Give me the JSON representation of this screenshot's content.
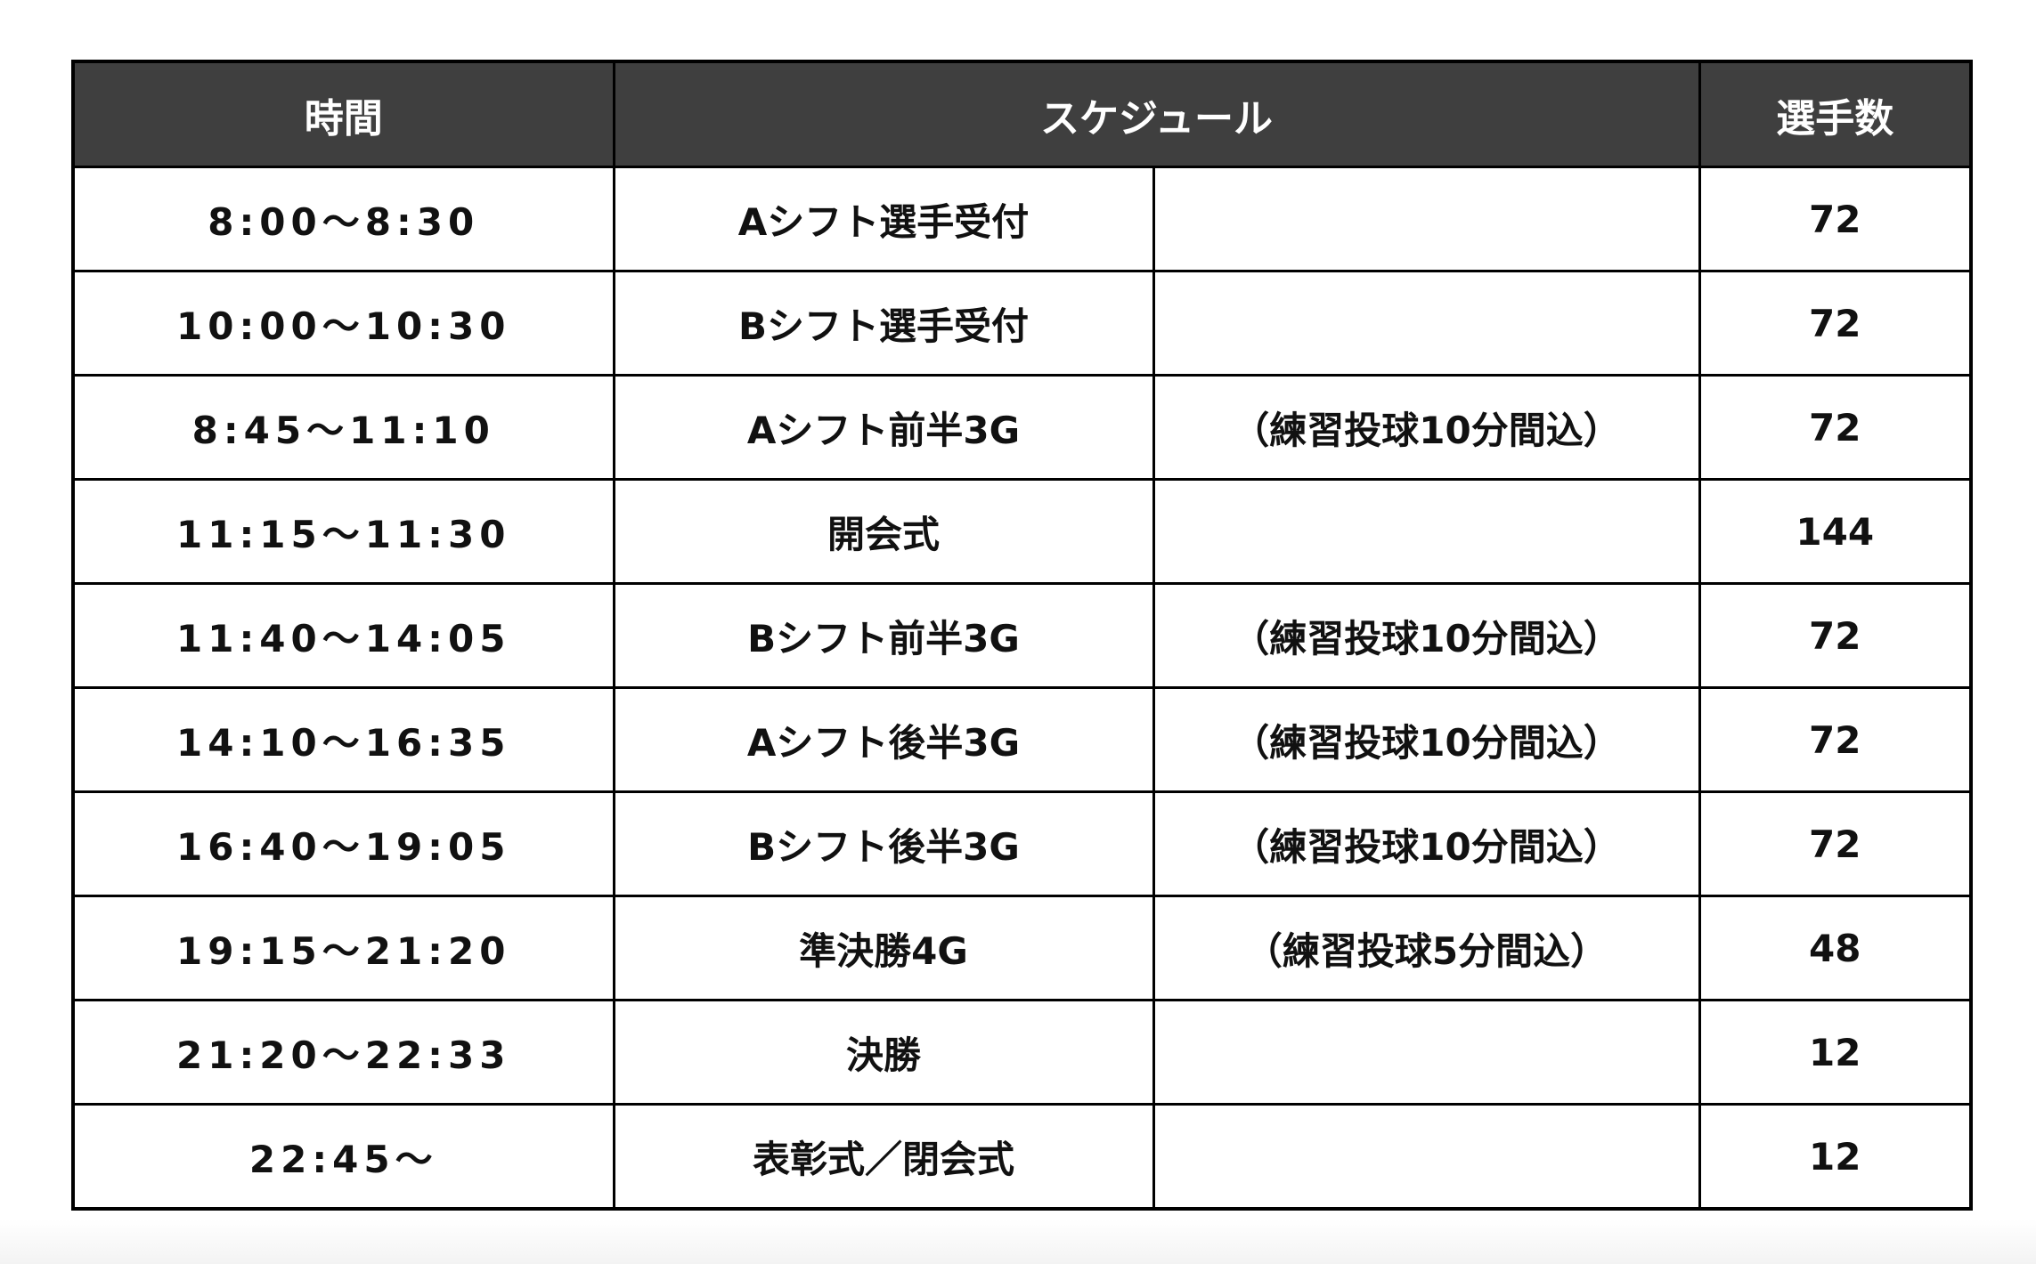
{
  "headers": {
    "time": "時間",
    "schedule": "スケジュール",
    "players": "選手数"
  },
  "rows": [
    {
      "time": "8:00〜8:30",
      "event": "Aシフト選手受付",
      "note": "",
      "players": "72"
    },
    {
      "time": "10:00〜10:30",
      "event": "Bシフト選手受付",
      "note": "",
      "players": "72"
    },
    {
      "time": "8:45〜11:10",
      "event": "Aシフト前半3G",
      "note": "（練習投球10分間込）",
      "players": "72"
    },
    {
      "time": "11:15〜11:30",
      "event": "開会式",
      "note": "",
      "players": "144"
    },
    {
      "time": "11:40〜14:05",
      "event": "Bシフト前半3G",
      "note": "（練習投球10分間込）",
      "players": "72"
    },
    {
      "time": "14:10〜16:35",
      "event": "Aシフト後半3G",
      "note": "（練習投球10分間込）",
      "players": "72"
    },
    {
      "time": "16:40〜19:05",
      "event": "Bシフト後半3G",
      "note": "（練習投球10分間込）",
      "players": "72"
    },
    {
      "time": "19:15〜21:20",
      "event": "準決勝4G",
      "note": "（練習投球5分間込）",
      "players": "48"
    },
    {
      "time": "21:20〜22:33",
      "event": "決勝",
      "note": "",
      "players": "12"
    },
    {
      "time": "22:45〜",
      "event": "表彰式／閉会式",
      "note": "",
      "players": "12"
    }
  ]
}
